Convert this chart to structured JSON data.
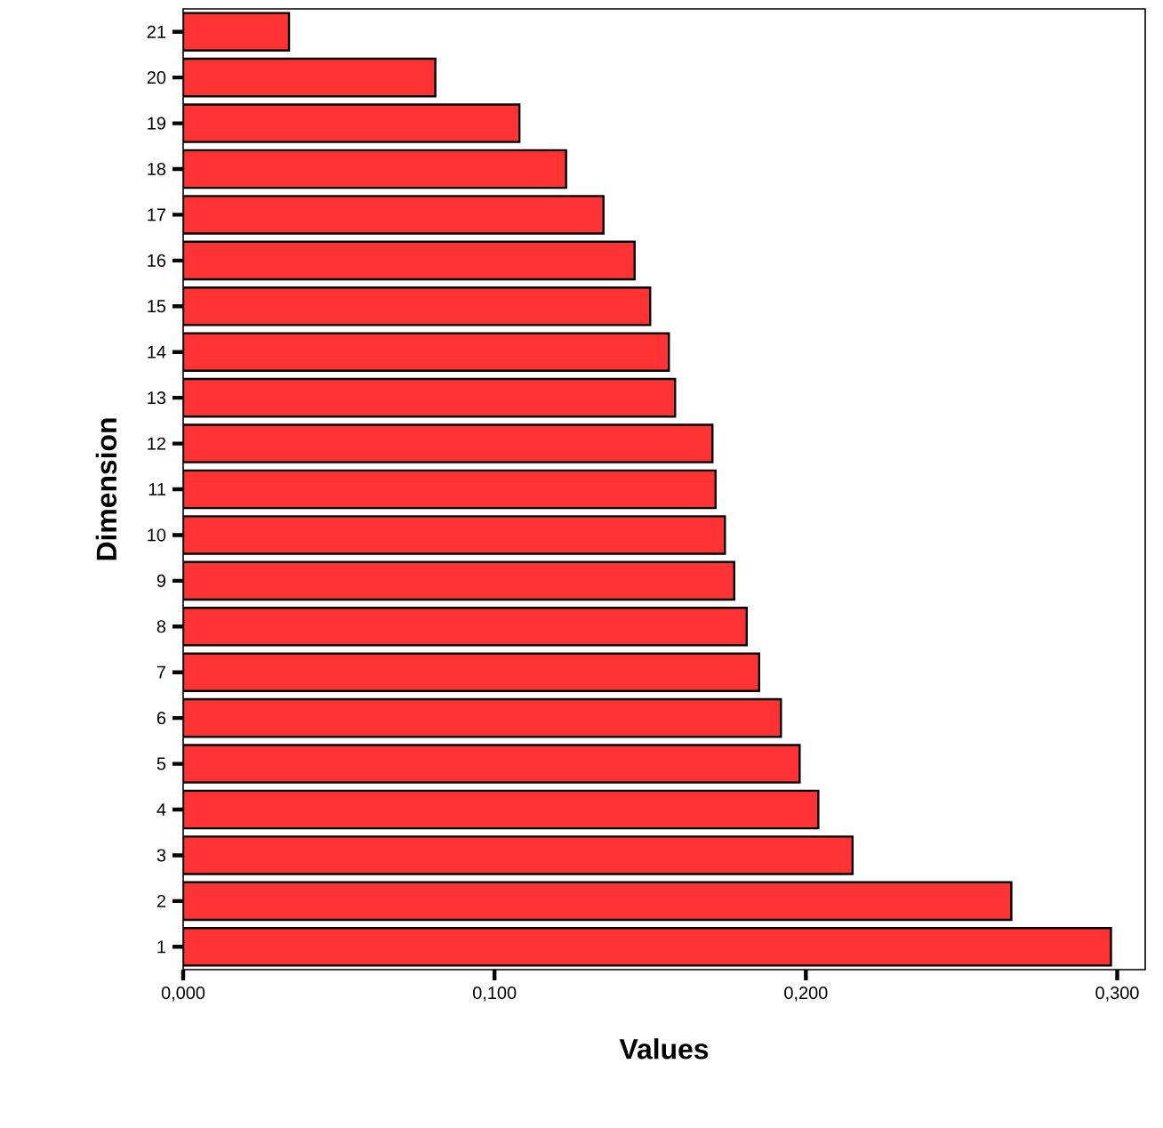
{
  "chart_data": {
    "type": "bar",
    "orientation": "horizontal",
    "xlabel": "Values",
    "ylabel": "Dimension",
    "categories": [
      "21",
      "20",
      "19",
      "18",
      "17",
      "16",
      "15",
      "14",
      "13",
      "12",
      "11",
      "10",
      "9",
      "8",
      "7",
      "6",
      "5",
      "4",
      "3",
      "2",
      "1"
    ],
    "values": [
      0.034,
      0.081,
      0.108,
      0.123,
      0.135,
      0.145,
      0.15,
      0.156,
      0.158,
      0.17,
      0.171,
      0.174,
      0.177,
      0.181,
      0.185,
      0.192,
      0.198,
      0.204,
      0.215,
      0.266,
      0.298
    ],
    "color": "#ff3333",
    "xlim": [
      0,
      0.309
    ],
    "xticks": [
      {
        "value": 0,
        "label": "0,000"
      },
      {
        "value": 0.1,
        "label": "0,100"
      },
      {
        "value": 0.2,
        "label": "0,200"
      },
      {
        "value": 0.3,
        "label": "0,300"
      }
    ]
  }
}
